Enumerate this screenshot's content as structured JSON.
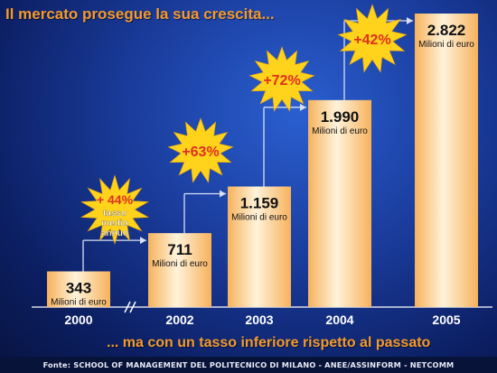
{
  "title": "Il mercato prosegue la sua crescita...",
  "subtitle": "... ma con un tasso inferiore rispetto al passato",
  "source": "Fonte: SCHOOL OF MANAGEMENT DEL POLITECNICO DI MILANO - ANEE/ASSINFORM - NETCOMM",
  "colors": {
    "accent": "#f39a2e",
    "burst_fill": "#ffd21c",
    "burst_text": "#e0301e",
    "bar_light": "#fff3da",
    "bar_dark": "#f6b25d"
  },
  "chart_data": {
    "type": "bar",
    "categories": [
      "2000",
      "2002",
      "2003",
      "2004",
      "2005"
    ],
    "values": [
      343,
      711,
      1159,
      1990,
      2822
    ],
    "value_labels": [
      "343",
      "711",
      "1.159",
      "1.990",
      "2.822"
    ],
    "unit_label": "Milioni di euro",
    "axis_break_after": "2000",
    "growth_labels": [
      "+ 44%",
      "+63%",
      "+72%",
      "+42%"
    ],
    "growth_note": [
      "tasso",
      "medio",
      "annuo"
    ],
    "ylim": [
      0,
      2822
    ],
    "grid": false,
    "legend": "none"
  }
}
